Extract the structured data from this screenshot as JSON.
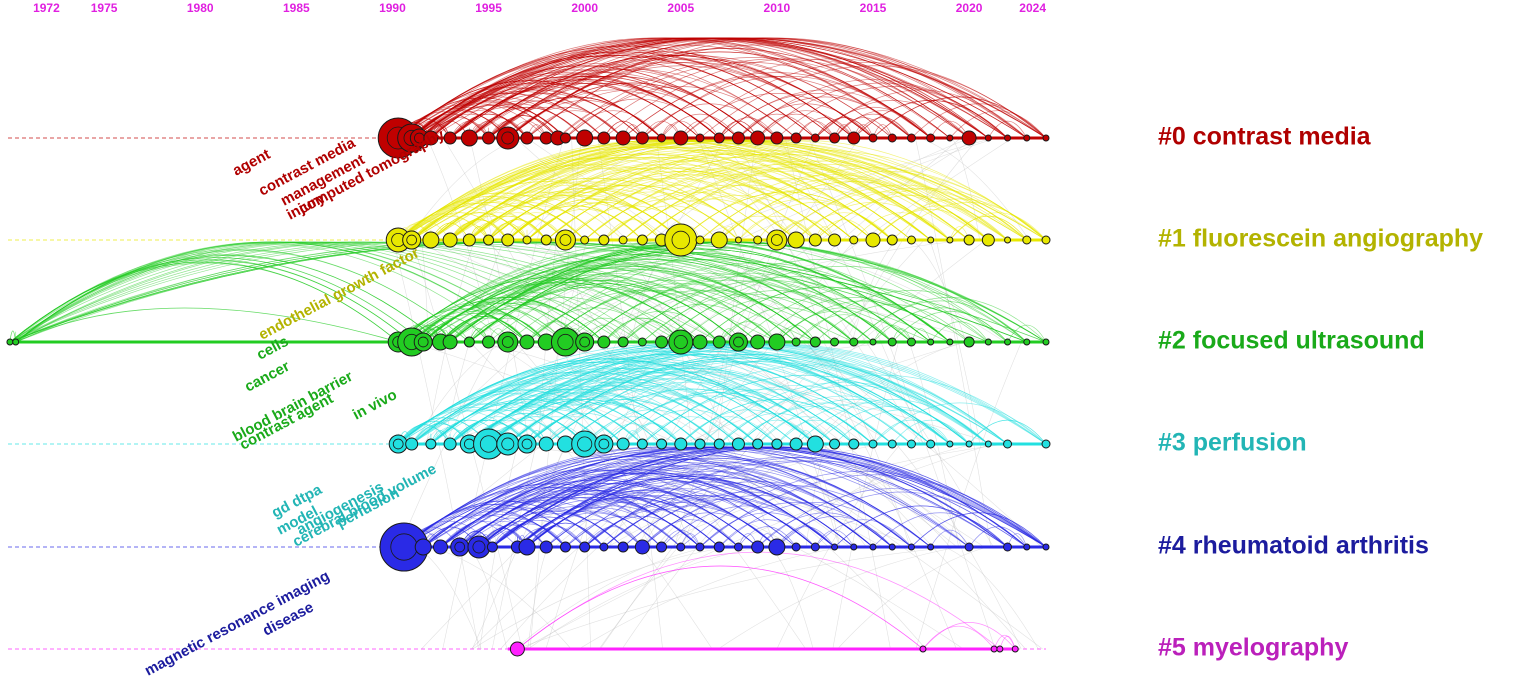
{
  "colors": {
    "year_ticks": "#e020e0",
    "background_links": "#bdbdbd",
    "node_stroke": "#1a1a1a"
  },
  "timeline": {
    "year_min": 1970,
    "year_max": 2024,
    "year_ticks": [
      "1972",
      "1975",
      "1980",
      "1985",
      "1990",
      "1995",
      "2000",
      "2005",
      "2010",
      "2015",
      "2020",
      "2024"
    ]
  },
  "clusters": [
    {
      "label": "#0 contrast media",
      "color": "#c00000",
      "label_color": "#b00000",
      "start_year": 1990,
      "end_year": 2024,
      "keywords": [
        "agent",
        "contrast media",
        "management",
        "computed tomography",
        "injury"
      ],
      "nodes": [
        [
          1990.3,
          20
        ],
        [
          1991,
          14
        ],
        [
          1991.4,
          9
        ],
        [
          1992,
          7
        ],
        [
          1993,
          6
        ],
        [
          1994,
          8
        ],
        [
          1995,
          6
        ],
        [
          1996,
          11
        ],
        [
          1997,
          6
        ],
        [
          1998,
          6
        ],
        [
          1998.6,
          7
        ],
        [
          1999,
          5
        ],
        [
          2000,
          8
        ],
        [
          2001,
          6
        ],
        [
          2002,
          7
        ],
        [
          2003,
          6
        ],
        [
          2004,
          4
        ],
        [
          2005,
          7
        ],
        [
          2006,
          4
        ],
        [
          2007,
          5
        ],
        [
          2008,
          6
        ],
        [
          2009,
          7
        ],
        [
          2010,
          6
        ],
        [
          2011,
          5
        ],
        [
          2012,
          4
        ],
        [
          2013,
          5
        ],
        [
          2014,
          6
        ],
        [
          2015,
          4
        ],
        [
          2016,
          4
        ],
        [
          2017,
          4
        ],
        [
          2018,
          4
        ],
        [
          2019,
          3
        ],
        [
          2020,
          7
        ],
        [
          2021,
          3
        ],
        [
          2022,
          3
        ],
        [
          2023,
          3
        ],
        [
          2024,
          3
        ]
      ]
    },
    {
      "label": "#1 fluorescein angiography",
      "color": "#e8e800",
      "label_color": "#b3b300",
      "start_year": 1990,
      "end_year": 2024,
      "keywords": [
        "endothelial growth factor"
      ],
      "nodes": [
        [
          1990.3,
          12
        ],
        [
          1991,
          9
        ],
        [
          1992,
          8
        ],
        [
          1993,
          7
        ],
        [
          1994,
          6
        ],
        [
          1995,
          5
        ],
        [
          1996,
          6
        ],
        [
          1997,
          4
        ],
        [
          1998,
          5
        ],
        [
          1999,
          10
        ],
        [
          2000,
          4
        ],
        [
          2001,
          5
        ],
        [
          2002,
          4
        ],
        [
          2003,
          5
        ],
        [
          2004,
          6
        ],
        [
          2005,
          16
        ],
        [
          2006,
          4
        ],
        [
          2007,
          8
        ],
        [
          2008,
          3
        ],
        [
          2009,
          4
        ],
        [
          2010,
          10
        ],
        [
          2011,
          8
        ],
        [
          2012,
          6
        ],
        [
          2013,
          6
        ],
        [
          2014,
          4
        ],
        [
          2015,
          7
        ],
        [
          2016,
          5
        ],
        [
          2017,
          4
        ],
        [
          2018,
          3
        ],
        [
          2019,
          3
        ],
        [
          2020,
          5
        ],
        [
          2021,
          6
        ],
        [
          2022,
          3
        ],
        [
          2023,
          4
        ],
        [
          2024,
          4
        ]
      ]
    },
    {
      "label": "#2 focused ultrasound",
      "color": "#22cc22",
      "label_color": "#1aaa1a",
      "start_year": 1970,
      "end_year": 2024,
      "keywords": [
        "cancer",
        "cells",
        "blood brain barrier",
        "contrast agent",
        "in vivo"
      ],
      "nodes": [
        [
          1970.1,
          3
        ],
        [
          1970.4,
          3
        ],
        [
          1990.3,
          10
        ],
        [
          1991,
          14
        ],
        [
          1991.6,
          9
        ],
        [
          1992.5,
          8
        ],
        [
          1993,
          7
        ],
        [
          1994,
          5
        ],
        [
          1995,
          6
        ],
        [
          1996,
          10
        ],
        [
          1997,
          7
        ],
        [
          1998,
          8
        ],
        [
          1999,
          14
        ],
        [
          2000,
          9
        ],
        [
          2001,
          6
        ],
        [
          2002,
          5
        ],
        [
          2003,
          4
        ],
        [
          2004,
          6
        ],
        [
          2005,
          12
        ],
        [
          2006,
          7
        ],
        [
          2007,
          6
        ],
        [
          2008,
          9
        ],
        [
          2009,
          7
        ],
        [
          2010,
          8
        ],
        [
          2011,
          4
        ],
        [
          2012,
          5
        ],
        [
          2013,
          4
        ],
        [
          2014,
          4
        ],
        [
          2015,
          3
        ],
        [
          2016,
          4
        ],
        [
          2017,
          4
        ],
        [
          2018,
          3
        ],
        [
          2019,
          3
        ],
        [
          2020,
          5
        ],
        [
          2021,
          3
        ],
        [
          2022,
          3
        ],
        [
          2023,
          3
        ],
        [
          2024,
          3
        ]
      ]
    },
    {
      "label": "#3 perfusion",
      "color": "#22e0e0",
      "label_color": "#22b5b5",
      "start_year": 1990,
      "end_year": 2024,
      "keywords": [
        "gd dtpa",
        "model",
        "angiogenesis",
        "cerebral blood volume",
        "perfusion"
      ],
      "nodes": [
        [
          1990.3,
          9
        ],
        [
          1991,
          6
        ],
        [
          1992,
          5
        ],
        [
          1993,
          6
        ],
        [
          1994,
          9
        ],
        [
          1995,
          15
        ],
        [
          1996,
          11
        ],
        [
          1997,
          9
        ],
        [
          1998,
          7
        ],
        [
          1999,
          8
        ],
        [
          2000,
          13
        ],
        [
          2001,
          9
        ],
        [
          2002,
          6
        ],
        [
          2003,
          5
        ],
        [
          2004,
          5
        ],
        [
          2005,
          6
        ],
        [
          2006,
          5
        ],
        [
          2007,
          5
        ],
        [
          2008,
          6
        ],
        [
          2009,
          5
        ],
        [
          2010,
          5
        ],
        [
          2011,
          6
        ],
        [
          2012,
          8
        ],
        [
          2013,
          5
        ],
        [
          2014,
          5
        ],
        [
          2015,
          4
        ],
        [
          2016,
          4
        ],
        [
          2017,
          4
        ],
        [
          2018,
          4
        ],
        [
          2019,
          3
        ],
        [
          2020,
          3
        ],
        [
          2021,
          3
        ],
        [
          2022,
          4
        ],
        [
          2024,
          4
        ]
      ]
    },
    {
      "label": "#4 rheumatoid arthritis",
      "color": "#2a2ae6",
      "label_color": "#1c1c9e",
      "start_year": 1990,
      "end_year": 2024,
      "keywords": [
        "magnetic resonance imaging",
        "disease"
      ],
      "nodes": [
        [
          1990.6,
          24
        ],
        [
          1991.6,
          8
        ],
        [
          1992.5,
          7
        ],
        [
          1993.5,
          9
        ],
        [
          1994.5,
          11
        ],
        [
          1995.2,
          5
        ],
        [
          1996.5,
          6
        ],
        [
          1997,
          8
        ],
        [
          1998,
          6
        ],
        [
          1999,
          5
        ],
        [
          2000,
          5
        ],
        [
          2001,
          4
        ],
        [
          2002,
          5
        ],
        [
          2003,
          7
        ],
        [
          2004,
          5
        ],
        [
          2005,
          4
        ],
        [
          2006,
          4
        ],
        [
          2007,
          5
        ],
        [
          2008,
          4
        ],
        [
          2009,
          6
        ],
        [
          2010,
          8
        ],
        [
          2011,
          4
        ],
        [
          2012,
          4
        ],
        [
          2013,
          3
        ],
        [
          2014,
          3
        ],
        [
          2015,
          3
        ],
        [
          2016,
          3
        ],
        [
          2017,
          3
        ],
        [
          2018,
          3
        ],
        [
          2020,
          4
        ],
        [
          2022,
          4
        ],
        [
          2023,
          3
        ],
        [
          2024,
          3
        ]
      ]
    },
    {
      "label": "#5 myelography",
      "color": "#ff22ff",
      "label_color": "#bb20bb",
      "start_year": 1996,
      "end_year": 2022.5,
      "keywords": [],
      "nodes": [
        [
          1996.5,
          7
        ],
        [
          2017.6,
          3
        ],
        [
          2021.3,
          3
        ],
        [
          2021.6,
          3
        ],
        [
          2022.4,
          3
        ]
      ]
    }
  ]
}
